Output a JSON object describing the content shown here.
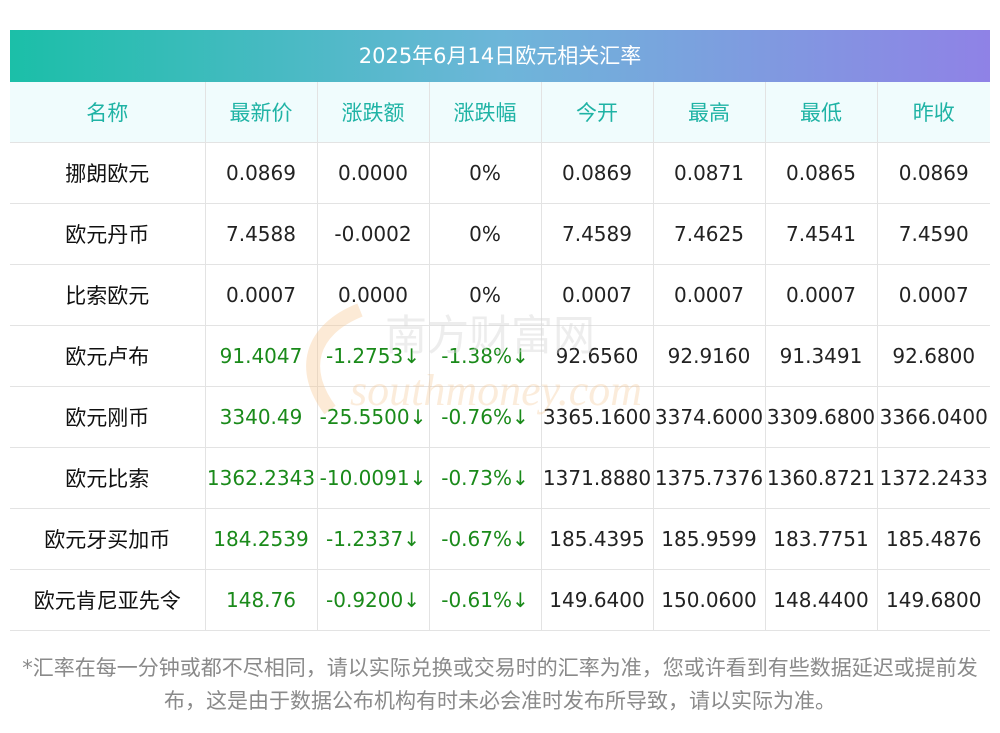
{
  "title": "2025年6月14日欧元相关汇率",
  "headers": [
    "名称",
    "最新价",
    "涨跌额",
    "涨跌幅",
    "今开",
    "最高",
    "最低",
    "昨收"
  ],
  "rows": [
    {
      "name": "挪朗欧元",
      "latest": "0.0869",
      "change": "0.0000",
      "pct": "0%",
      "open": "0.0869",
      "high": "0.0871",
      "low": "0.0865",
      "prev": "0.0869",
      "dir": "flat"
    },
    {
      "name": "欧元丹币",
      "latest": "7.4588",
      "change": "-0.0002",
      "pct": "0%",
      "open": "7.4589",
      "high": "7.4625",
      "low": "7.4541",
      "prev": "7.4590",
      "dir": "flat"
    },
    {
      "name": "比索欧元",
      "latest": "0.0007",
      "change": "0.0000",
      "pct": "0%",
      "open": "0.0007",
      "high": "0.0007",
      "low": "0.0007",
      "prev": "0.0007",
      "dir": "flat"
    },
    {
      "name": "欧元卢布",
      "latest": "91.4047",
      "change": "-1.2753↓",
      "pct": "-1.38%↓",
      "open": "92.6560",
      "high": "92.9160",
      "low": "91.3491",
      "prev": "92.6800",
      "dir": "down"
    },
    {
      "name": "欧元刚币",
      "latest": "3340.49",
      "change": "-25.5500↓",
      "pct": "-0.76%↓",
      "open": "3365.1600",
      "high": "3374.6000",
      "low": "3309.6800",
      "prev": "3366.0400",
      "dir": "down"
    },
    {
      "name": "欧元比索",
      "latest": "1362.2343",
      "change": "-10.0091↓",
      "pct": "-0.73%↓",
      "open": "1371.8880",
      "high": "1375.7376",
      "low": "1360.8721",
      "prev": "1372.2433",
      "dir": "down"
    },
    {
      "name": "欧元牙买加币",
      "latest": "184.2539",
      "change": "-1.2337↓",
      "pct": "-0.67%↓",
      "open": "185.4395",
      "high": "185.9599",
      "low": "183.7751",
      "prev": "185.4876",
      "dir": "down"
    },
    {
      "name": "欧元肯尼亚先令",
      "latest": "148.76",
      "change": "-0.9200↓",
      "pct": "-0.61%↓",
      "open": "149.6400",
      "high": "150.0600",
      "low": "148.4400",
      "prev": "149.6800",
      "dir": "down"
    }
  ],
  "footnote": "*汇率在每一分钟或都不尽相同，请以实际兑换或交易时的汇率为准，您或许看到有些数据延迟或提前发布，这是由于数据公布机构有时未必会准时发布所导致，请以实际为准。",
  "watermark": {
    "cn": "南方财富网",
    "en": "southmoney.com"
  },
  "colors": {
    "header_text": "#1fb3a5",
    "down": "#1a8a1a",
    "title_gradient_start": "#1bbfa8",
    "title_gradient_end": "#8f82e6"
  }
}
